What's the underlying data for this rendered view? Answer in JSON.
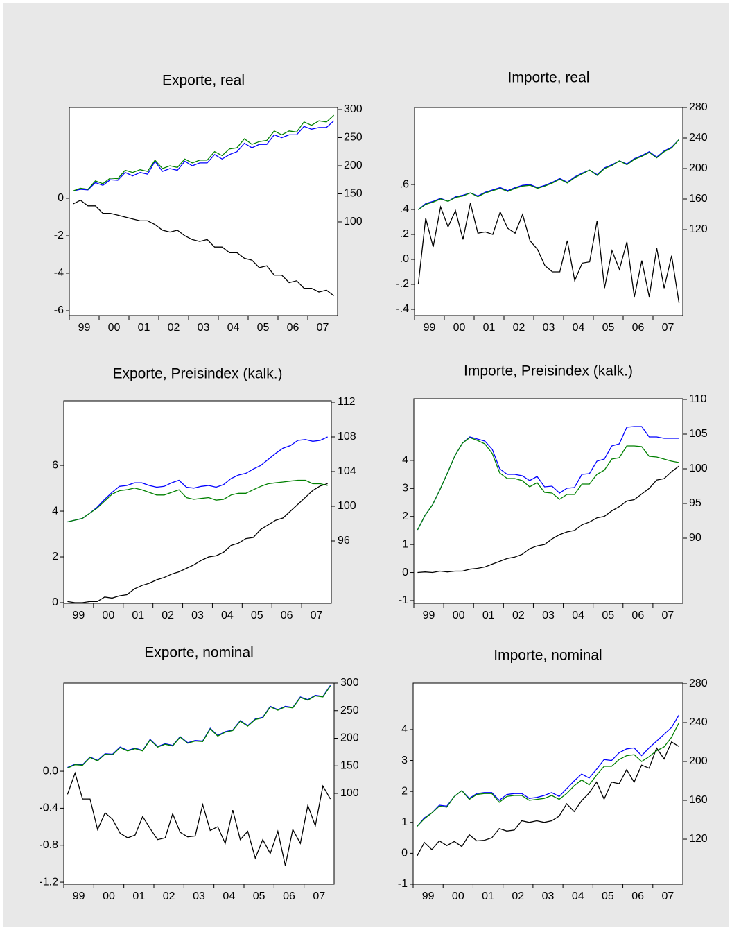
{
  "chart_data": [
    {
      "type": "line",
      "title": "Exporte, real",
      "categories": [
        "99",
        null,
        null,
        null,
        "00",
        null,
        null,
        null,
        "01",
        null,
        null,
        null,
        "02",
        null,
        null,
        null,
        "03",
        null,
        null,
        null,
        "04",
        null,
        null,
        null,
        "05",
        null,
        null,
        null,
        "06",
        null,
        null,
        null,
        "07",
        null,
        null,
        null
      ],
      "ylim": [
        -6.26,
        4.85
      ],
      "yticks": [
        -6,
        -4,
        -2,
        0
      ],
      "y2lim": [
        -66.7,
        303.7
      ],
      "y2ticks": [
        100,
        150,
        200,
        250,
        300
      ],
      "series": [
        {
          "color": "#000000",
          "values": [
            -0.3,
            -0.1,
            -0.4,
            -0.4,
            -0.8,
            -0.8,
            -0.9,
            -1.0,
            -1.1,
            -1.2,
            -1.2,
            -1.4,
            -1.7,
            -1.8,
            -1.7,
            -2.0,
            -2.2,
            -2.3,
            -2.2,
            -2.6,
            -2.6,
            -2.9,
            -2.9,
            -3.2,
            -3.3,
            -3.7,
            -3.6,
            -4.1,
            -4.1,
            -4.5,
            -4.4,
            -4.8,
            -4.8,
            -5.0,
            -4.9,
            -5.2
          ]
        },
        {
          "color": "#0000ff",
          "axis": "y2",
          "values": [
            155,
            158,
            157,
            170,
            165,
            175,
            174,
            188,
            182,
            188,
            185,
            208,
            190,
            195,
            192,
            208,
            200,
            205,
            205,
            220,
            212,
            220,
            225,
            240,
            232,
            238,
            238,
            255,
            250,
            255,
            255,
            270,
            265,
            268,
            268,
            280
          ]
        },
        {
          "color": "#008000",
          "axis": "y2",
          "values": [
            155,
            160,
            158,
            173,
            168,
            178,
            177,
            192,
            188,
            193,
            190,
            210,
            195,
            200,
            197,
            212,
            205,
            210,
            210,
            225,
            218,
            230,
            232,
            248,
            238,
            243,
            245,
            262,
            255,
            262,
            260,
            278,
            272,
            280,
            278,
            290
          ]
        }
      ]
    },
    {
      "type": "line",
      "title": "Importe, real",
      "categories": [
        "99",
        null,
        null,
        null,
        "00",
        null,
        null,
        null,
        "01",
        null,
        null,
        null,
        "02",
        null,
        null,
        null,
        "03",
        null,
        null,
        null,
        "04",
        null,
        null,
        null,
        "05",
        null,
        null,
        null,
        "06",
        null,
        null,
        null,
        "07",
        null,
        null,
        null
      ],
      "ylim": [
        -0.45,
        1.217
      ],
      "yticks": [
        {
          "value": -0.4,
          "label": "-.4"
        },
        {
          "value": -0.2,
          "label": "-.2"
        },
        {
          "value": 0,
          "label": ".0"
        },
        {
          "value": 0.2,
          "label": ".2"
        },
        {
          "value": 0.4,
          "label": ".4"
        },
        {
          "value": 0.6,
          "label": ".6"
        }
      ],
      "y2lim": [
        7.3,
        280
      ],
      "y2ticks": [
        120,
        160,
        200,
        240,
        280
      ],
      "series": [
        {
          "color": "#000000",
          "values": [
            -0.2,
            0.33,
            0.1,
            0.42,
            0.26,
            0.39,
            0.16,
            0.45,
            0.21,
            0.22,
            0.2,
            0.38,
            0.25,
            0.21,
            0.36,
            0.15,
            0.08,
            -0.05,
            -0.1,
            -0.1,
            0.15,
            -0.17,
            -0.03,
            -0.02,
            0.31,
            -0.23,
            0.07,
            -0.08,
            0.14,
            -0.3,
            -0.01,
            -0.3,
            0.09,
            -0.23,
            0.03,
            -0.35
          ]
        },
        {
          "color": "#0000ff",
          "axis": "y2",
          "values": [
            146,
            154,
            157,
            161,
            157,
            163,
            165,
            168,
            164,
            169,
            172,
            175,
            171,
            175,
            178,
            179,
            175,
            178,
            182,
            187,
            182,
            189,
            194,
            198,
            192,
            201,
            205,
            210,
            206,
            213,
            217,
            222,
            215,
            223,
            228,
            238
          ]
        },
        {
          "color": "#008000",
          "axis": "y2",
          "values": [
            146,
            153,
            156,
            160,
            157,
            162,
            164,
            168,
            163,
            168,
            171,
            174,
            170,
            174,
            177,
            178,
            174,
            177,
            181,
            186,
            181,
            188,
            193,
            198,
            191,
            200,
            204,
            210,
            205,
            212,
            216,
            221,
            214,
            222,
            227,
            238
          ]
        }
      ]
    },
    {
      "type": "line",
      "title": "Exporte, Preisindex (kalk.)",
      "categories": [
        "99",
        null,
        null,
        null,
        "00",
        null,
        null,
        null,
        "01",
        null,
        null,
        null,
        "02",
        null,
        null,
        null,
        "03",
        null,
        null,
        null,
        "04",
        null,
        null,
        null,
        "05",
        null,
        null,
        null,
        "06",
        null,
        null,
        null,
        "07",
        null,
        null,
        null
      ],
      "ylim": [
        -0.03,
        8.82
      ],
      "yticks": [
        0,
        2,
        4,
        6
      ],
      "y2lim": [
        88.8,
        112.16
      ],
      "y2ticks": [
        96,
        100,
        104,
        108,
        112
      ],
      "series": [
        {
          "color": "#000000",
          "values": [
            0.05,
            0.0,
            0.0,
            0.05,
            0.05,
            0.25,
            0.2,
            0.3,
            0.35,
            0.6,
            0.75,
            0.85,
            1.0,
            1.1,
            1.25,
            1.35,
            1.5,
            1.65,
            1.85,
            2.0,
            2.05,
            2.2,
            2.5,
            2.6,
            2.8,
            2.85,
            3.2,
            3.4,
            3.6,
            3.7,
            4.0,
            4.3,
            4.6,
            4.9,
            5.1,
            5.2
          ]
        },
        {
          "color": "#0000ff",
          "axis": "y2",
          "values": [
            98.2,
            98.4,
            98.6,
            99.2,
            99.9,
            100.8,
            101.6,
            102.3,
            102.4,
            102.7,
            102.7,
            102.4,
            102.2,
            102.3,
            102.7,
            103.0,
            102.2,
            102.1,
            102.3,
            102.4,
            102.2,
            102.5,
            103.2,
            103.6,
            103.8,
            104.3,
            104.7,
            105.4,
            106.1,
            106.7,
            107.0,
            107.6,
            107.7,
            107.5,
            107.6,
            108.0
          ]
        },
        {
          "color": "#008000",
          "axis": "y2",
          "values": [
            98.2,
            98.4,
            98.6,
            99.2,
            99.8,
            100.6,
            101.4,
            101.8,
            101.9,
            102.1,
            101.9,
            101.6,
            101.3,
            101.3,
            101.6,
            101.9,
            101.0,
            100.8,
            100.9,
            101.0,
            100.7,
            100.8,
            101.3,
            101.5,
            101.5,
            101.9,
            102.3,
            102.6,
            102.7,
            102.8,
            102.9,
            103.0,
            103.0,
            102.6,
            102.6,
            102.4
          ]
        }
      ]
    },
    {
      "type": "line",
      "title": "Importe,  Preisindex (kalk.)",
      "categories": [
        "99",
        null,
        null,
        null,
        "00",
        null,
        null,
        null,
        "01",
        null,
        null,
        null,
        "02",
        null,
        null,
        null,
        "03",
        null,
        null,
        null,
        "04",
        null,
        null,
        null,
        "05",
        null,
        null,
        null,
        "06",
        null,
        null,
        null,
        "07",
        null,
        null,
        null
      ],
      "ylim": [
        -1.1,
        6.2
      ],
      "yticks": [
        -1,
        0,
        1,
        2,
        3,
        4
      ],
      "y2lim": [
        80.6,
        110.1
      ],
      "y2ticks": [
        90,
        95,
        100,
        105,
        110
      ],
      "series": [
        {
          "color": "#000000",
          "values": [
            0,
            0.02,
            0,
            0.05,
            0.02,
            0.05,
            0.05,
            0.12,
            0.15,
            0.2,
            0.3,
            0.4,
            0.5,
            0.55,
            0.65,
            0.85,
            0.95,
            1.0,
            1.2,
            1.35,
            1.45,
            1.5,
            1.7,
            1.8,
            1.95,
            2.0,
            2.2,
            2.35,
            2.55,
            2.6,
            2.8,
            3.0,
            3.3,
            3.35,
            3.6,
            3.8
          ]
        },
        {
          "color": "#0000ff",
          "axis": "y2",
          "values": [
            91.2,
            93.3,
            94.8,
            97,
            99.4,
            101.9,
            103.7,
            104.6,
            104.3,
            104.0,
            102.8,
            100,
            99.2,
            99.2,
            99.0,
            98.3,
            98.9,
            97.4,
            97.5,
            96.5,
            97.2,
            97.3,
            99.2,
            99.3,
            101.1,
            101.4,
            103.3,
            103.6,
            106.0,
            106.1,
            106.1,
            104.6,
            104.6,
            104.4,
            104.4,
            104.4
          ]
        },
        {
          "color": "#008000",
          "axis": "y2",
          "values": [
            91.2,
            93.3,
            94.8,
            97,
            99.4,
            101.9,
            103.7,
            104.5,
            104.1,
            103.6,
            102.2,
            99.4,
            98.6,
            98.6,
            98.3,
            97.4,
            98.0,
            96.6,
            96.5,
            95.6,
            96.3,
            96.3,
            97.8,
            97.8,
            99.2,
            99.8,
            101.4,
            101.6,
            103.3,
            103.3,
            103.2,
            101.8,
            101.7,
            101.4,
            101.1,
            100.9
          ]
        }
      ]
    },
    {
      "type": "line",
      "title": "Exporte,  nominal",
      "categories": [
        "99",
        null,
        null,
        null,
        "00",
        null,
        null,
        null,
        "01",
        null,
        null,
        null,
        "02",
        null,
        null,
        null,
        "03",
        null,
        null,
        null,
        "04",
        null,
        null,
        null,
        "05",
        null,
        null,
        null,
        "06",
        null,
        null,
        null,
        "07",
        null,
        null,
        null
      ],
      "ylim": [
        -1.222,
        0.953
      ],
      "yticks": [
        {
          "value": -1.2,
          "label": "-1.2"
        },
        {
          "value": -0.8,
          "label": "-0.8"
        },
        {
          "value": -0.4,
          "label": "-0.4"
        },
        {
          "value": 0,
          "label": "0.0"
        }
      ],
      "y2lim": [
        -64.8,
        300
      ],
      "y2ticks": [
        100,
        150,
        200,
        250,
        300
      ],
      "series": [
        {
          "color": "#000000",
          "values": [
            -0.25,
            -0.02,
            -0.3,
            -0.3,
            -0.63,
            -0.45,
            -0.52,
            -0.67,
            -0.72,
            -0.69,
            -0.49,
            -0.62,
            -0.74,
            -0.72,
            -0.46,
            -0.66,
            -0.71,
            -0.7,
            -0.36,
            -0.64,
            -0.6,
            -0.78,
            -0.42,
            -0.74,
            -0.65,
            -0.94,
            -0.74,
            -0.89,
            -0.65,
            -1.02,
            -0.63,
            -0.78,
            -0.37,
            -0.59,
            -0.16,
            -0.3
          ]
        },
        {
          "color": "#0000ff",
          "axis": "y2",
          "values": [
            147,
            153,
            152,
            166,
            160,
            172,
            171,
            184,
            178,
            182,
            178,
            198,
            185,
            190,
            187,
            203,
            192,
            196,
            195,
            218,
            205,
            212,
            215,
            232,
            223,
            235,
            238,
            258,
            252,
            258,
            256,
            275,
            270,
            278,
            276,
            296
          ]
        },
        {
          "color": "#008000",
          "axis": "y2",
          "values": [
            146,
            152,
            151,
            165,
            159,
            171,
            170,
            183,
            177,
            181,
            177,
            197,
            184,
            189,
            186,
            202,
            191,
            195,
            194,
            217,
            204,
            211,
            214,
            231,
            222,
            234,
            237,
            257,
            251,
            257,
            255,
            274,
            269,
            277,
            275,
            295
          ]
        }
      ]
    },
    {
      "type": "line",
      "title": "Importe, nominal",
      "categories": [
        "99",
        null,
        null,
        null,
        "00",
        null,
        null,
        null,
        "01",
        null,
        null,
        null,
        "02",
        null,
        null,
        null,
        "03",
        null,
        null,
        null,
        "04",
        null,
        null,
        null,
        "05",
        null,
        null,
        null,
        "06",
        null,
        null,
        null,
        "07",
        null,
        null,
        null
      ],
      "ylim": [
        -1,
        5.5
      ],
      "yticks": [
        -1,
        0,
        1,
        2,
        3,
        4
      ],
      "y2lim": [
        73.6,
        280.7
      ],
      "y2ticks": [
        120,
        160,
        200,
        240,
        280
      ],
      "series": [
        {
          "color": "#000000",
          "values": [
            -0.1,
            0.35,
            0.12,
            0.4,
            0.25,
            0.38,
            0.22,
            0.6,
            0.4,
            0.42,
            0.5,
            0.8,
            0.72,
            0.75,
            1.05,
            1.0,
            1.05,
            1.0,
            1.05,
            1.2,
            1.6,
            1.35,
            1.7,
            1.95,
            2.3,
            1.75,
            2.3,
            2.25,
            2.7,
            2.3,
            2.85,
            2.75,
            3.4,
            3.05,
            3.6,
            3.45
          ]
        },
        {
          "color": "#0000ff",
          "axis": "y2",
          "values": [
            133,
            142,
            147,
            155,
            154,
            164,
            170,
            162,
            167,
            168,
            168,
            160,
            166,
            167,
            167,
            162,
            163,
            165,
            168,
            164,
            172,
            180,
            187,
            183,
            192,
            202,
            201,
            209,
            213,
            214,
            206,
            214,
            221,
            228,
            235,
            248
          ]
        },
        {
          "color": "#008000",
          "axis": "y2",
          "values": [
            133,
            141,
            147,
            154,
            153,
            164,
            170,
            161,
            166,
            167,
            167,
            158,
            164,
            165,
            165,
            160,
            161,
            162,
            165,
            161,
            167,
            175,
            181,
            176,
            186,
            195,
            195,
            202,
            206,
            207,
            200,
            205,
            211,
            215,
            225,
            240
          ]
        }
      ]
    }
  ]
}
